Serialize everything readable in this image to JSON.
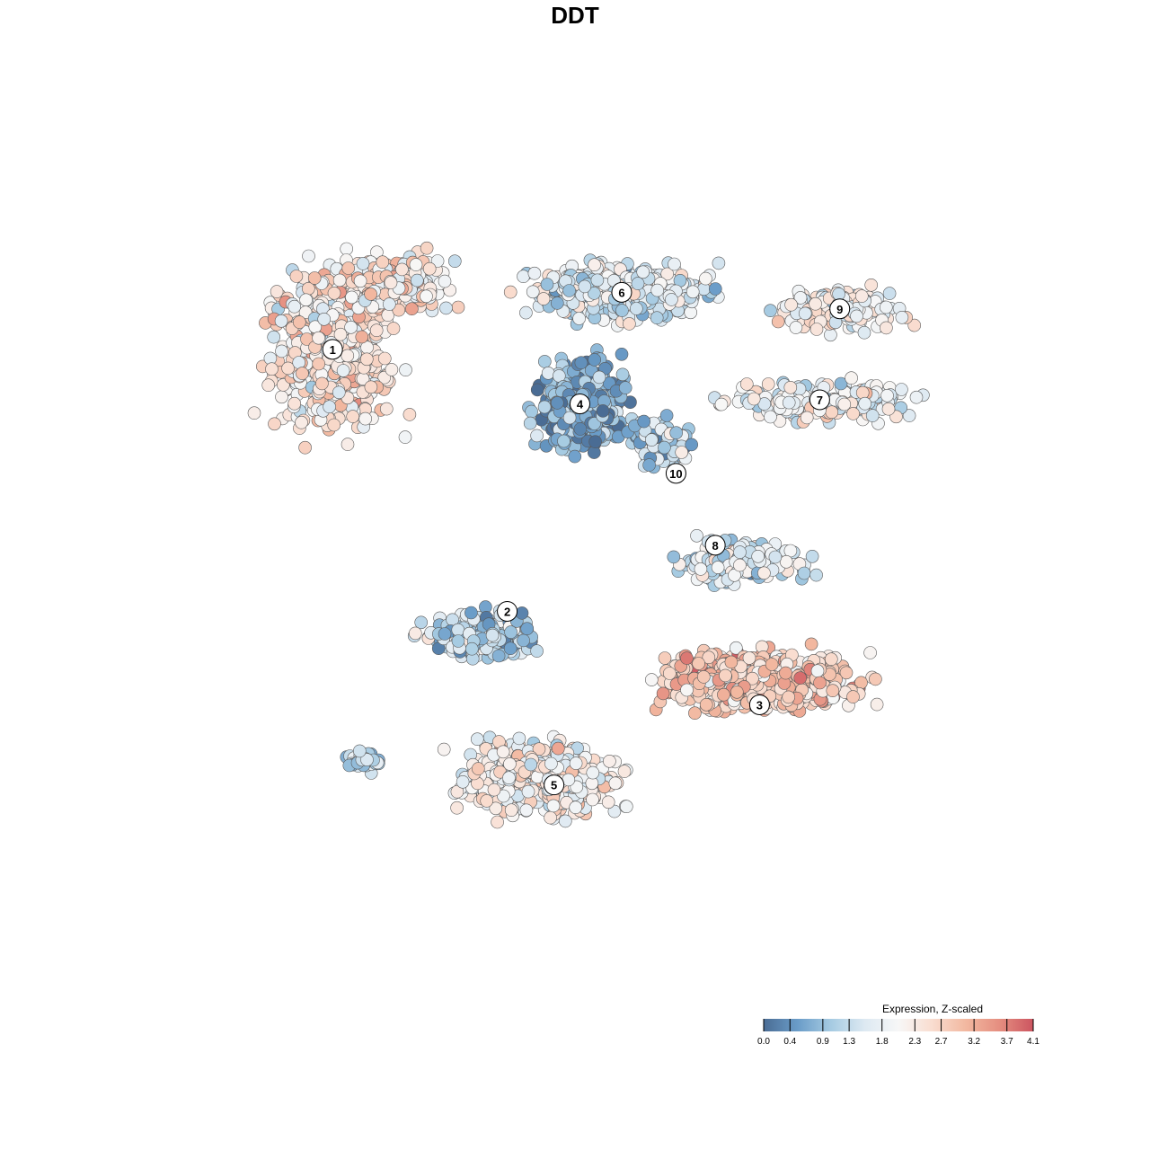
{
  "chart_data": {
    "type": "scatter",
    "title": "DDT",
    "xlabel": "",
    "ylabel": "",
    "grid": false,
    "legend": {
      "title": "Expression, Z-scaled",
      "placement": "bottom-right",
      "ticks": [
        "0.0",
        "0.4",
        "0.9",
        "1.3",
        "1.8",
        "2.3",
        "2.7",
        "3.2",
        "3.7",
        "4.1"
      ],
      "range": [
        0.0,
        4.1
      ],
      "colors": [
        "#4a6c94",
        "#6a9cc8",
        "#a6cbe2",
        "#dde9f2",
        "#f7f7f7",
        "#f9ddd0",
        "#f2b8a0",
        "#e58e80",
        "#cc5560"
      ]
    },
    "clusters": [
      {
        "label": "1",
        "x": 0.183,
        "y": 0.773,
        "mean_expression": 2.3
      },
      {
        "label": "2",
        "x": 0.392,
        "y": 0.456,
        "mean_expression": 1.2
      },
      {
        "label": "3",
        "x": 0.694,
        "y": 0.343,
        "mean_expression": 2.8
      },
      {
        "label": "4",
        "x": 0.479,
        "y": 0.707,
        "mean_expression": 0.6
      },
      {
        "label": "5",
        "x": 0.448,
        "y": 0.246,
        "mean_expression": 2.1
      },
      {
        "label": "6",
        "x": 0.529,
        "y": 0.842,
        "mean_expression": 1.6
      },
      {
        "label": "7",
        "x": 0.766,
        "y": 0.712,
        "mean_expression": 1.9
      },
      {
        "label": "8",
        "x": 0.641,
        "y": 0.536,
        "mean_expression": 1.5
      },
      {
        "label": "9",
        "x": 0.79,
        "y": 0.822,
        "mean_expression": 2.0
      },
      {
        "label": "10",
        "x": 0.594,
        "y": 0.623,
        "mean_expression": 1.1
      }
    ]
  }
}
